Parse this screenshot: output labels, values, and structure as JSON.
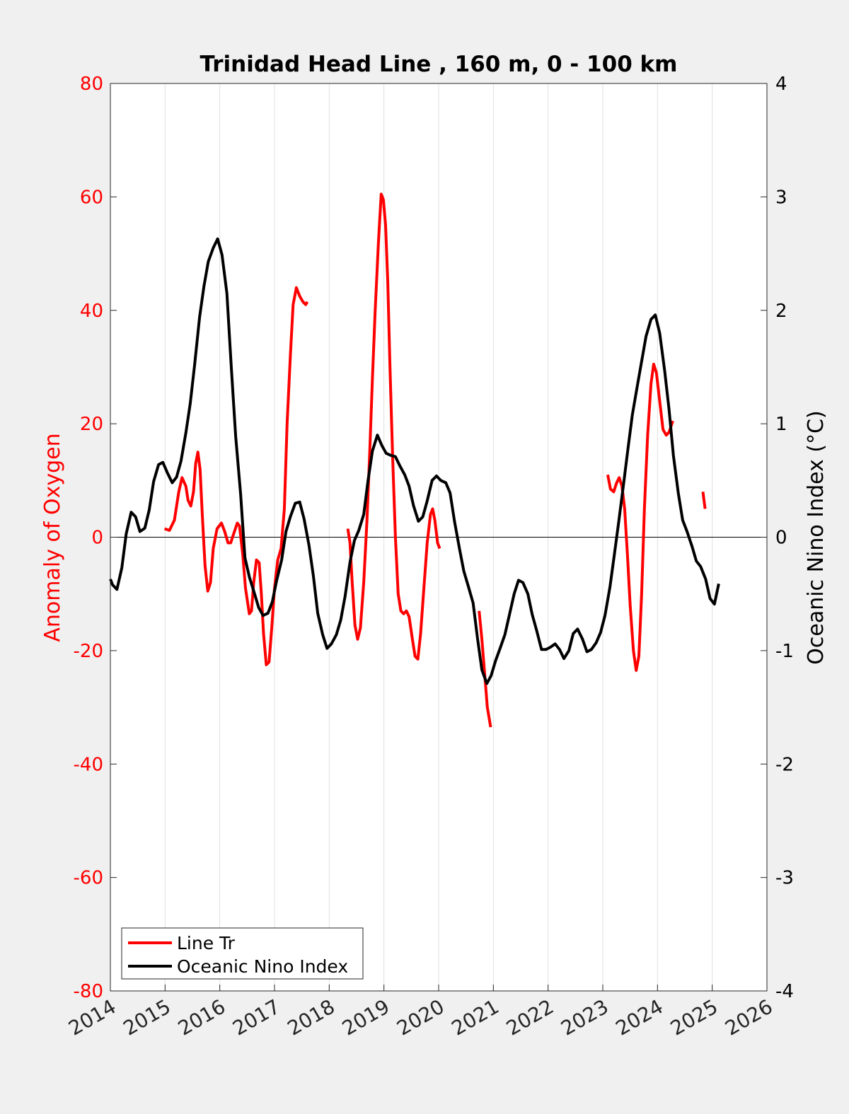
{
  "chart_data": {
    "type": "line",
    "title": "Trinidad Head Line , 160 m, 0 - 100 km",
    "xlabel": "",
    "ylabel_left": "Anomaly of Oxygen",
    "ylabel_right": "Oceanic Nino Index (°C)",
    "xlim": [
      2014,
      2026
    ],
    "ylim_left": [
      -80,
      80
    ],
    "ylim_right": [
      -4,
      4
    ],
    "x_ticks": [
      2014,
      2015,
      2016,
      2017,
      2018,
      2019,
      2020,
      2021,
      2022,
      2023,
      2024,
      2025,
      2026
    ],
    "y_ticks_left": [
      -80,
      -60,
      -40,
      -20,
      0,
      20,
      40,
      60,
      80
    ],
    "y_ticks_right": [
      -4,
      -3,
      -2,
      -1,
      0,
      1,
      2,
      3,
      4
    ],
    "grid": "vertical",
    "zero_line": true,
    "legend_position": "bottom-left",
    "colors": {
      "oxygen": "#ff0000",
      "oni": "#000000",
      "left_axis": "#ff0000",
      "right_axis": "#000000",
      "grid": "#e0e0e0",
      "background": "#f0f0f0",
      "plot_area": "#ffffff"
    },
    "series": [
      {
        "name": "Line Tr",
        "axis": "left",
        "color": "#ff0000",
        "segments": [
          [
            [
              2014.99,
              1.5
            ],
            [
              2015.08,
              1.2
            ],
            [
              2015.17,
              3
            ],
            [
              2015.25,
              8
            ],
            [
              2015.31,
              10.5
            ],
            [
              2015.38,
              9
            ],
            [
              2015.42,
              6.5
            ],
            [
              2015.47,
              5.5
            ],
            [
              2015.52,
              8
            ],
            [
              2015.56,
              13
            ],
            [
              2015.6,
              15
            ],
            [
              2015.64,
              12
            ],
            [
              2015.68,
              4
            ],
            [
              2015.73,
              -5
            ],
            [
              2015.78,
              -9.5
            ],
            [
              2015.83,
              -8
            ],
            [
              2015.88,
              -2
            ],
            [
              2015.95,
              1.5
            ],
            [
              2016.03,
              2.5
            ],
            [
              2016.09,
              1
            ],
            [
              2016.15,
              -1
            ],
            [
              2016.2,
              -1
            ],
            [
              2016.25,
              0.5
            ],
            [
              2016.32,
              2.5
            ],
            [
              2016.36,
              2
            ],
            [
              2016.42,
              -3
            ],
            [
              2016.47,
              -9
            ],
            [
              2016.54,
              -13.5
            ],
            [
              2016.58,
              -13
            ],
            [
              2016.62,
              -8
            ],
            [
              2016.67,
              -4
            ],
            [
              2016.72,
              -4.5
            ],
            [
              2016.76,
              -10
            ],
            [
              2016.8,
              -17
            ],
            [
              2016.85,
              -22.5
            ],
            [
              2016.9,
              -22
            ],
            [
              2016.95,
              -16
            ],
            [
              2017.0,
              -9
            ],
            [
              2017.06,
              -4
            ],
            [
              2017.12,
              -2
            ],
            [
              2017.18,
              5
            ],
            [
              2017.23,
              20
            ],
            [
              2017.29,
              32
            ],
            [
              2017.34,
              41
            ],
            [
              2017.4,
              44
            ],
            [
              2017.46,
              42.5
            ],
            [
              2017.52,
              41.5
            ],
            [
              2017.57,
              41
            ],
            [
              2017.6,
              41.5
            ]
          ],
          [
            [
              2018.34,
              1.5
            ],
            [
              2018.38,
              -1
            ],
            [
              2018.42,
              -8
            ],
            [
              2018.47,
              -15.5
            ],
            [
              2018.52,
              -18
            ],
            [
              2018.57,
              -16
            ],
            [
              2018.63,
              -8
            ],
            [
              2018.69,
              3
            ],
            [
              2018.74,
              15
            ],
            [
              2018.79,
              28
            ],
            [
              2018.84,
              40
            ],
            [
              2018.9,
              52
            ],
            [
              2018.95,
              60.5
            ],
            [
              2018.99,
              59.5
            ],
            [
              2019.03,
              55
            ],
            [
              2019.07,
              45
            ],
            [
              2019.11,
              30
            ],
            [
              2019.16,
              14
            ],
            [
              2019.21,
              0
            ],
            [
              2019.26,
              -10
            ],
            [
              2019.31,
              -13
            ],
            [
              2019.36,
              -13.5
            ],
            [
              2019.41,
              -13
            ],
            [
              2019.46,
              -14
            ],
            [
              2019.52,
              -18
            ],
            [
              2019.57,
              -21
            ],
            [
              2019.62,
              -21.5
            ],
            [
              2019.67,
              -17
            ],
            [
              2019.73,
              -9
            ],
            [
              2019.79,
              -1
            ],
            [
              2019.85,
              4
            ],
            [
              2019.89,
              5
            ],
            [
              2019.93,
              3
            ],
            [
              2019.98,
              -1
            ],
            [
              2020.02,
              -2
            ]
          ],
          [
            [
              2020.74,
              -13
            ],
            [
              2020.79,
              -18
            ],
            [
              2020.84,
              -24
            ],
            [
              2020.89,
              -30
            ],
            [
              2020.95,
              -33.5
            ]
          ],
          [
            [
              2023.09,
              11
            ],
            [
              2023.14,
              8.5
            ],
            [
              2023.2,
              8
            ],
            [
              2023.25,
              9.5
            ],
            [
              2023.3,
              10.5
            ],
            [
              2023.35,
              9
            ],
            [
              2023.4,
              5
            ],
            [
              2023.45,
              -3
            ],
            [
              2023.5,
              -12
            ],
            [
              2023.56,
              -20
            ],
            [
              2023.61,
              -23.5
            ],
            [
              2023.66,
              -21
            ],
            [
              2023.71,
              -10
            ],
            [
              2023.76,
              5
            ],
            [
              2023.82,
              18
            ],
            [
              2023.88,
              27
            ],
            [
              2023.93,
              30.5
            ],
            [
              2023.98,
              29
            ],
            [
              2024.04,
              24
            ],
            [
              2024.1,
              19
            ],
            [
              2024.16,
              18
            ],
            [
              2024.21,
              18.5
            ],
            [
              2024.28,
              20.5
            ]
          ],
          [
            [
              2024.83,
              8
            ],
            [
              2024.87,
              5
            ]
          ]
        ]
      },
      {
        "name": "Oceanic Nino Index",
        "axis": "right",
        "color": "#000000",
        "segments": [
          [
            [
              2014.0,
              -0.37
            ],
            [
              2014.04,
              -0.42
            ],
            [
              2014.12,
              -0.46
            ],
            [
              2014.21,
              -0.27
            ],
            [
              2014.29,
              0.03
            ],
            [
              2014.38,
              0.22
            ],
            [
              2014.46,
              0.18
            ],
            [
              2014.54,
              0.05
            ],
            [
              2014.63,
              0.08
            ],
            [
              2014.71,
              0.24
            ],
            [
              2014.79,
              0.49
            ],
            [
              2014.88,
              0.64
            ],
            [
              2014.96,
              0.66
            ],
            [
              2015.04,
              0.57
            ],
            [
              2015.13,
              0.48
            ],
            [
              2015.21,
              0.53
            ],
            [
              2015.29,
              0.67
            ],
            [
              2015.38,
              0.92
            ],
            [
              2015.46,
              1.18
            ],
            [
              2015.54,
              1.52
            ],
            [
              2015.63,
              1.94
            ],
            [
              2015.71,
              2.21
            ],
            [
              2015.79,
              2.43
            ],
            [
              2015.88,
              2.55
            ],
            [
              2015.96,
              2.63
            ],
            [
              2016.04,
              2.49
            ],
            [
              2016.13,
              2.15
            ],
            [
              2016.21,
              1.5
            ],
            [
              2016.29,
              0.89
            ],
            [
              2016.38,
              0.38
            ],
            [
              2016.46,
              -0.18
            ],
            [
              2016.54,
              -0.35
            ],
            [
              2016.63,
              -0.49
            ],
            [
              2016.71,
              -0.62
            ],
            [
              2016.79,
              -0.69
            ],
            [
              2016.88,
              -0.67
            ],
            [
              2016.96,
              -0.57
            ],
            [
              2017.04,
              -0.38
            ],
            [
              2017.13,
              -0.2
            ],
            [
              2017.21,
              0.05
            ],
            [
              2017.29,
              0.18
            ],
            [
              2017.38,
              0.3
            ],
            [
              2017.46,
              0.31
            ],
            [
              2017.54,
              0.16
            ],
            [
              2017.63,
              -0.07
            ],
            [
              2017.71,
              -0.34
            ],
            [
              2017.79,
              -0.67
            ],
            [
              2017.88,
              -0.86
            ],
            [
              2017.96,
              -0.98
            ],
            [
              2018.04,
              -0.94
            ],
            [
              2018.13,
              -0.86
            ],
            [
              2018.21,
              -0.73
            ],
            [
              2018.29,
              -0.52
            ],
            [
              2018.38,
              -0.22
            ],
            [
              2018.46,
              -0.03
            ],
            [
              2018.54,
              0.06
            ],
            [
              2018.63,
              0.2
            ],
            [
              2018.71,
              0.5
            ],
            [
              2018.79,
              0.76
            ],
            [
              2018.88,
              0.9
            ],
            [
              2018.96,
              0.81
            ],
            [
              2019.04,
              0.74
            ],
            [
              2019.13,
              0.72
            ],
            [
              2019.21,
              0.71
            ],
            [
              2019.29,
              0.63
            ],
            [
              2019.38,
              0.55
            ],
            [
              2019.46,
              0.45
            ],
            [
              2019.54,
              0.28
            ],
            [
              2019.63,
              0.14
            ],
            [
              2019.71,
              0.18
            ],
            [
              2019.79,
              0.32
            ],
            [
              2019.88,
              0.5
            ],
            [
              2019.96,
              0.54
            ],
            [
              2020.04,
              0.5
            ],
            [
              2020.13,
              0.48
            ],
            [
              2020.21,
              0.39
            ],
            [
              2020.29,
              0.14
            ],
            [
              2020.38,
              -0.1
            ],
            [
              2020.46,
              -0.3
            ],
            [
              2020.54,
              -0.43
            ],
            [
              2020.63,
              -0.58
            ],
            [
              2020.71,
              -0.89
            ],
            [
              2020.79,
              -1.17
            ],
            [
              2020.88,
              -1.29
            ],
            [
              2020.96,
              -1.22
            ],
            [
              2021.04,
              -1.09
            ],
            [
              2021.13,
              -0.97
            ],
            [
              2021.21,
              -0.86
            ],
            [
              2021.29,
              -0.69
            ],
            [
              2021.38,
              -0.5
            ],
            [
              2021.46,
              -0.38
            ],
            [
              2021.54,
              -0.4
            ],
            [
              2021.63,
              -0.5
            ],
            [
              2021.71,
              -0.68
            ],
            [
              2021.79,
              -0.82
            ],
            [
              2021.88,
              -0.99
            ],
            [
              2021.96,
              -0.99
            ],
            [
              2022.04,
              -0.97
            ],
            [
              2022.13,
              -0.94
            ],
            [
              2022.21,
              -0.99
            ],
            [
              2022.29,
              -1.07
            ],
            [
              2022.38,
              -1.0
            ],
            [
              2022.46,
              -0.85
            ],
            [
              2022.54,
              -0.81
            ],
            [
              2022.63,
              -0.9
            ],
            [
              2022.71,
              -1.01
            ],
            [
              2022.79,
              -0.99
            ],
            [
              2022.88,
              -0.93
            ],
            [
              2022.96,
              -0.84
            ],
            [
              2023.04,
              -0.69
            ],
            [
              2023.13,
              -0.44
            ],
            [
              2023.21,
              -0.16
            ],
            [
              2023.29,
              0.13
            ],
            [
              2023.38,
              0.47
            ],
            [
              2023.46,
              0.78
            ],
            [
              2023.54,
              1.08
            ],
            [
              2023.63,
              1.33
            ],
            [
              2023.71,
              1.55
            ],
            [
              2023.79,
              1.77
            ],
            [
              2023.88,
              1.92
            ],
            [
              2023.96,
              1.96
            ],
            [
              2024.04,
              1.8
            ],
            [
              2024.13,
              1.47
            ],
            [
              2024.21,
              1.13
            ],
            [
              2024.29,
              0.72
            ],
            [
              2024.38,
              0.39
            ],
            [
              2024.46,
              0.15
            ],
            [
              2024.54,
              0.05
            ],
            [
              2024.63,
              -0.08
            ],
            [
              2024.71,
              -0.21
            ],
            [
              2024.79,
              -0.26
            ],
            [
              2024.88,
              -0.37
            ],
            [
              2024.96,
              -0.54
            ],
            [
              2025.04,
              -0.59
            ],
            [
              2025.12,
              -0.41
            ]
          ]
        ]
      }
    ]
  }
}
